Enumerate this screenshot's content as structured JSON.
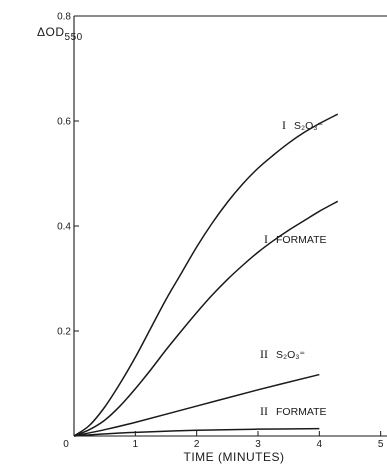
{
  "chart_data": {
    "type": "line",
    "xlabel": "TIME  (MINUTES)",
    "ylabel": "ΔOD",
    "ylabel_subscript": "550",
    "xlim": [
      0,
      6
    ],
    "ylim": [
      0,
      0.8
    ],
    "x_ticks": [
      0,
      1,
      2,
      3,
      4,
      5
    ],
    "x_tick_labels": [
      "0",
      "1",
      "2",
      "3",
      "4",
      "5"
    ],
    "y_ticks": [
      0.2,
      0.4,
      0.6,
      0.8
    ],
    "y_tick_labels": [
      "0.2",
      "0.4",
      "0.6",
      "0.8"
    ],
    "grid": false,
    "series": [
      {
        "label_numeral": "I",
        "label_text": "S₂O₃⁼",
        "x": [
          0,
          0.25,
          0.5,
          0.75,
          1,
          1.25,
          1.5,
          1.75,
          2,
          2.25,
          2.5,
          2.75,
          3,
          3.25,
          3.5,
          3.75,
          4,
          4.3
        ],
        "y": [
          0,
          0.02,
          0.055,
          0.1,
          0.15,
          0.205,
          0.26,
          0.31,
          0.36,
          0.405,
          0.445,
          0.48,
          0.51,
          0.535,
          0.558,
          0.578,
          0.595,
          0.613
        ]
      },
      {
        "label_numeral": "I",
        "label_text": "FORMATE",
        "x": [
          0,
          0.25,
          0.5,
          0.75,
          1,
          1.25,
          1.5,
          1.75,
          2,
          2.25,
          2.5,
          2.75,
          3,
          3.25,
          3.5,
          3.75,
          4,
          4.3
        ],
        "y": [
          0,
          0.012,
          0.03,
          0.057,
          0.09,
          0.126,
          0.164,
          0.2,
          0.235,
          0.268,
          0.298,
          0.325,
          0.35,
          0.372,
          0.392,
          0.41,
          0.428,
          0.447
        ]
      },
      {
        "label_numeral": "II",
        "label_text": "S₂O₃⁼",
        "x": [
          0,
          0.5,
          1,
          2,
          3,
          4
        ],
        "y": [
          0,
          0.012,
          0.026,
          0.057,
          0.088,
          0.117
        ]
      },
      {
        "label_numeral": "II",
        "label_text": "FORMATE",
        "x": [
          0,
          0.5,
          1,
          2,
          3,
          4
        ],
        "y": [
          0,
          0.004,
          0.007,
          0.011,
          0.013,
          0.014
        ]
      }
    ]
  }
}
